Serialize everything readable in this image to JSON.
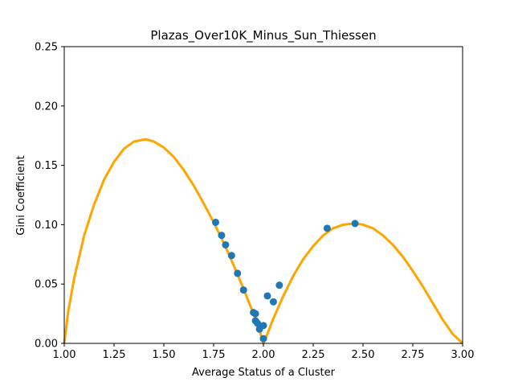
{
  "chart_data": {
    "type": "scatter",
    "title": "Plazas_Over10K_Minus_Sun_Thiessen",
    "xlabel": "Average Status of a Cluster",
    "ylabel": "Gini Coefficient",
    "xlim": [
      1.0,
      3.0
    ],
    "ylim": [
      0.0,
      0.25
    ],
    "x_ticks": [
      "1.00",
      "1.25",
      "1.50",
      "1.75",
      "2.00",
      "2.25",
      "2.50",
      "2.75",
      "3.00"
    ],
    "y_ticks": [
      "0.00",
      "0.05",
      "0.10",
      "0.15",
      "0.20",
      "0.25"
    ],
    "grid": false,
    "legend": "none",
    "colors": {
      "points": "#1f77b4",
      "curve": "#ffa500"
    },
    "curve": {
      "description_values": "piecewise arc",
      "x": [
        1.0,
        1.02,
        1.05,
        1.1,
        1.15,
        1.2,
        1.25,
        1.3,
        1.35,
        1.41,
        1.45,
        1.5,
        1.55,
        1.6,
        1.65,
        1.7,
        1.75,
        1.8,
        1.85,
        1.9,
        1.95,
        1.98,
        2.0,
        2.02,
        2.05,
        2.1,
        2.15,
        2.2,
        2.25,
        2.3,
        2.35,
        2.4,
        2.46,
        2.5,
        2.55,
        2.6,
        2.65,
        2.7,
        2.75,
        2.8,
        2.85,
        2.9,
        2.95,
        3.0
      ],
      "y": [
        0.0,
        0.027,
        0.055,
        0.091,
        0.117,
        0.138,
        0.153,
        0.164,
        0.17,
        0.172,
        0.17,
        0.165,
        0.157,
        0.146,
        0.133,
        0.118,
        0.102,
        0.085,
        0.066,
        0.046,
        0.025,
        0.011,
        0.0,
        0.008,
        0.021,
        0.04,
        0.057,
        0.071,
        0.082,
        0.091,
        0.097,
        0.1,
        0.101,
        0.1,
        0.097,
        0.091,
        0.083,
        0.073,
        0.061,
        0.048,
        0.034,
        0.02,
        0.008,
        0.0
      ]
    },
    "points": {
      "x": [
        1.76,
        1.79,
        1.81,
        1.84,
        1.87,
        1.9,
        1.95,
        1.96,
        1.96,
        1.97,
        1.98,
        2.0,
        2.0,
        2.02,
        2.05,
        2.08,
        2.32,
        2.46
      ],
      "y": [
        0.102,
        0.091,
        0.083,
        0.074,
        0.059,
        0.045,
        0.026,
        0.025,
        0.019,
        0.017,
        0.012,
        0.015,
        0.004,
        0.04,
        0.035,
        0.049,
        0.097,
        0.101
      ]
    }
  }
}
